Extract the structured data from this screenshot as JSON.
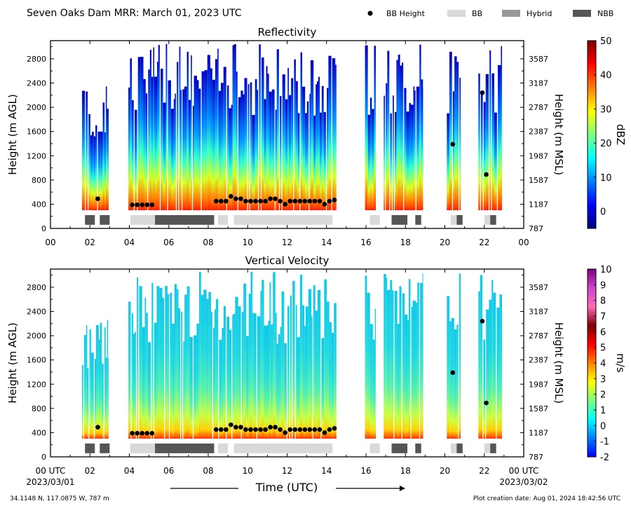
{
  "title": "Seven Oaks Dam MRR:  March 01, 2023 UTC",
  "legend": {
    "position": "top-right",
    "items": [
      {
        "label": "BB Height",
        "kind": "dot",
        "color": "#000000"
      },
      {
        "label": "BB",
        "kind": "box",
        "color": "#d9d9d9"
      },
      {
        "label": "Hybrid",
        "kind": "box",
        "color": "#999999"
      },
      {
        "label": "NBB",
        "kind": "box",
        "color": "#555555"
      }
    ]
  },
  "footer": {
    "location": "34.1148 N, 117.0875 W, 787 m",
    "created": "Plot creation date: Aug 01, 2024 18:42:56 UTC"
  },
  "xaxis": {
    "label": "Time (UTC)",
    "range": [
      0,
      24
    ],
    "ticks": [
      0,
      2,
      4,
      6,
      8,
      10,
      12,
      14,
      16,
      18,
      20,
      22,
      24
    ],
    "tick_labels_top": [
      "00",
      "02",
      "04",
      "06",
      "08",
      "10",
      "12",
      "14",
      "16",
      "18",
      "20",
      "22",
      "00"
    ],
    "tick_labels_bottom": [
      "00 UTC",
      "02",
      "04",
      "06",
      "08",
      "10",
      "12",
      "14",
      "16",
      "18",
      "20",
      "22",
      "00 UTC"
    ],
    "start_date": "2023/03/01",
    "end_date": "2023/03/02"
  },
  "chart_data": [
    {
      "type": "heatmap",
      "title": "Reflectivity",
      "ylabel": "Height (m AGL)",
      "ylabel_right": "Height (m MSL)",
      "ylim": [
        0,
        3100
      ],
      "yticks": [
        0,
        400,
        800,
        1200,
        1600,
        2000,
        2400,
        2800
      ],
      "yticks_right_labels": [
        "787",
        "1187",
        "1587",
        "1987",
        "2387",
        "2787",
        "3187",
        "3587"
      ],
      "colorbar": {
        "label": "dBZ",
        "range": [
          -5,
          50
        ],
        "ticks": [
          0,
          10,
          20,
          30,
          40,
          50
        ],
        "colors": [
          "#00007f",
          "#0000ff",
          "#007fff",
          "#00ffff",
          "#7fff7f",
          "#ffff00",
          "#ff7f00",
          "#ff0000",
          "#7f0000"
        ]
      },
      "echo_segments": [
        {
          "start": 1.6,
          "end": 2.95,
          "top": 2300
        },
        {
          "start": 3.95,
          "end": 14.5,
          "top": 3000
        },
        {
          "start": 15.95,
          "end": 16.5,
          "top": 3000
        },
        {
          "start": 16.9,
          "end": 18.9,
          "top": 3000
        },
        {
          "start": 20.1,
          "end": 20.8,
          "top": 3000
        },
        {
          "start": 21.7,
          "end": 22.9,
          "top": 3000
        }
      ],
      "bb_height": [
        {
          "t": 2.4,
          "h": 490
        },
        {
          "t": 4.15,
          "h": 390
        },
        {
          "t": 4.4,
          "h": 390
        },
        {
          "t": 4.65,
          "h": 390
        },
        {
          "t": 4.9,
          "h": 390
        },
        {
          "t": 5.15,
          "h": 390
        },
        {
          "t": 8.4,
          "h": 450
        },
        {
          "t": 8.65,
          "h": 450
        },
        {
          "t": 8.9,
          "h": 450
        },
        {
          "t": 9.15,
          "h": 530
        },
        {
          "t": 9.4,
          "h": 490
        },
        {
          "t": 9.65,
          "h": 490
        },
        {
          "t": 9.9,
          "h": 450
        },
        {
          "t": 10.15,
          "h": 450
        },
        {
          "t": 10.4,
          "h": 450
        },
        {
          "t": 10.65,
          "h": 450
        },
        {
          "t": 10.9,
          "h": 450
        },
        {
          "t": 11.15,
          "h": 490
        },
        {
          "t": 11.4,
          "h": 490
        },
        {
          "t": 11.65,
          "h": 450
        },
        {
          "t": 11.9,
          "h": 400
        },
        {
          "t": 12.15,
          "h": 450
        },
        {
          "t": 12.4,
          "h": 450
        },
        {
          "t": 12.65,
          "h": 450
        },
        {
          "t": 12.9,
          "h": 450
        },
        {
          "t": 13.15,
          "h": 450
        },
        {
          "t": 13.4,
          "h": 450
        },
        {
          "t": 13.65,
          "h": 450
        },
        {
          "t": 13.9,
          "h": 400
        },
        {
          "t": 14.15,
          "h": 450
        },
        {
          "t": 14.4,
          "h": 470
        },
        {
          "t": 20.4,
          "h": 1390
        },
        {
          "t": 21.9,
          "h": 2240
        },
        {
          "t": 22.1,
          "h": 890
        }
      ],
      "bb_type": [
        {
          "start": 1.75,
          "end": 2.25,
          "type": "NBB"
        },
        {
          "start": 2.5,
          "end": 3.0,
          "type": "NBB"
        },
        {
          "start": 4.05,
          "end": 5.3,
          "type": "BB"
        },
        {
          "start": 5.3,
          "end": 8.3,
          "type": "NBB"
        },
        {
          "start": 8.5,
          "end": 9.0,
          "type": "BB"
        },
        {
          "start": 9.3,
          "end": 14.3,
          "type": "BB"
        },
        {
          "start": 16.2,
          "end": 16.7,
          "type": "BB"
        },
        {
          "start": 17.3,
          "end": 18.1,
          "type": "NBB"
        },
        {
          "start": 18.5,
          "end": 18.8,
          "type": "NBB"
        },
        {
          "start": 20.3,
          "end": 20.6,
          "type": "BB"
        },
        {
          "start": 20.6,
          "end": 20.9,
          "type": "NBB"
        },
        {
          "start": 22.0,
          "end": 22.3,
          "type": "BB"
        },
        {
          "start": 22.3,
          "end": 22.6,
          "type": "NBB"
        }
      ]
    },
    {
      "type": "heatmap",
      "title": "Vertical Velocity",
      "ylabel": "Height (m AGL)",
      "ylabel_right": "Height (m MSL)",
      "ylim": [
        0,
        3100
      ],
      "yticks": [
        0,
        400,
        800,
        1200,
        1600,
        2000,
        2400,
        2800
      ],
      "yticks_right_labels": [
        "787",
        "1187",
        "1587",
        "1987",
        "2387",
        "2787",
        "3187",
        "3587"
      ],
      "colorbar": {
        "label": "m/s",
        "range": [
          -2,
          10
        ],
        "ticks": [
          -2,
          -1,
          0,
          1,
          2,
          3,
          4,
          5,
          6,
          7,
          8,
          9,
          10
        ],
        "colors": [
          "#0000ff",
          "#007fff",
          "#00ffff",
          "#7fff7f",
          "#ffff00",
          "#ff7f00",
          "#ff0000",
          "#7f0000",
          "#ff69b4",
          "#cc44cc",
          "#800080"
        ]
      },
      "echo_segments": [
        {
          "start": 1.6,
          "end": 2.95,
          "top": 2300
        },
        {
          "start": 3.95,
          "end": 14.5,
          "top": 3000
        },
        {
          "start": 15.95,
          "end": 16.5,
          "top": 3000
        },
        {
          "start": 16.9,
          "end": 18.9,
          "top": 3000
        },
        {
          "start": 20.1,
          "end": 20.8,
          "top": 3000
        },
        {
          "start": 21.7,
          "end": 22.9,
          "top": 3000
        }
      ],
      "bb_height": [
        {
          "t": 2.4,
          "h": 490
        },
        {
          "t": 4.15,
          "h": 390
        },
        {
          "t": 4.4,
          "h": 390
        },
        {
          "t": 4.65,
          "h": 390
        },
        {
          "t": 4.9,
          "h": 390
        },
        {
          "t": 5.15,
          "h": 390
        },
        {
          "t": 8.4,
          "h": 450
        },
        {
          "t": 8.65,
          "h": 450
        },
        {
          "t": 8.9,
          "h": 450
        },
        {
          "t": 9.15,
          "h": 530
        },
        {
          "t": 9.4,
          "h": 490
        },
        {
          "t": 9.65,
          "h": 490
        },
        {
          "t": 9.9,
          "h": 450
        },
        {
          "t": 10.15,
          "h": 450
        },
        {
          "t": 10.4,
          "h": 450
        },
        {
          "t": 10.65,
          "h": 450
        },
        {
          "t": 10.9,
          "h": 450
        },
        {
          "t": 11.15,
          "h": 490
        },
        {
          "t": 11.4,
          "h": 490
        },
        {
          "t": 11.65,
          "h": 450
        },
        {
          "t": 11.9,
          "h": 400
        },
        {
          "t": 12.15,
          "h": 450
        },
        {
          "t": 12.4,
          "h": 450
        },
        {
          "t": 12.65,
          "h": 450
        },
        {
          "t": 12.9,
          "h": 450
        },
        {
          "t": 13.15,
          "h": 450
        },
        {
          "t": 13.4,
          "h": 450
        },
        {
          "t": 13.65,
          "h": 450
        },
        {
          "t": 13.9,
          "h": 400
        },
        {
          "t": 14.15,
          "h": 450
        },
        {
          "t": 14.4,
          "h": 470
        },
        {
          "t": 20.4,
          "h": 1390
        },
        {
          "t": 21.9,
          "h": 2240
        },
        {
          "t": 22.1,
          "h": 890
        }
      ],
      "bb_type": [
        {
          "start": 1.75,
          "end": 2.25,
          "type": "NBB"
        },
        {
          "start": 2.5,
          "end": 3.0,
          "type": "NBB"
        },
        {
          "start": 4.05,
          "end": 5.3,
          "type": "BB"
        },
        {
          "start": 5.3,
          "end": 8.3,
          "type": "NBB"
        },
        {
          "start": 8.5,
          "end": 9.0,
          "type": "BB"
        },
        {
          "start": 9.3,
          "end": 14.3,
          "type": "BB"
        },
        {
          "start": 16.2,
          "end": 16.7,
          "type": "BB"
        },
        {
          "start": 17.3,
          "end": 18.1,
          "type": "NBB"
        },
        {
          "start": 18.5,
          "end": 18.8,
          "type": "NBB"
        },
        {
          "start": 20.3,
          "end": 20.6,
          "type": "BB"
        },
        {
          "start": 20.6,
          "end": 20.9,
          "type": "NBB"
        },
        {
          "start": 22.0,
          "end": 22.3,
          "type": "BB"
        },
        {
          "start": 22.3,
          "end": 22.6,
          "type": "NBB"
        }
      ]
    }
  ]
}
